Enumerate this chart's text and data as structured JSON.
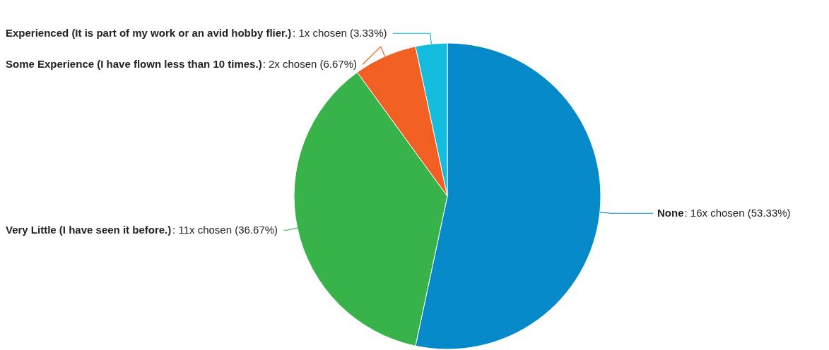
{
  "chart_data": {
    "type": "pie",
    "categories": [
      "None",
      "Very Little (I have seen it before.)",
      "Some Experience (I have flown less than 10 times.)",
      "Experienced (It is part of my work or an avid hobby flier.)"
    ],
    "values": [
      16,
      11,
      2,
      1
    ],
    "value_labels": [
      ": 16x chosen (53.33%)",
      ": 11x chosen (36.67%)",
      ": 2x chosen (6.67%)",
      ": 1x chosen (3.33%)"
    ],
    "colors": [
      "#0689c8",
      "#37b34a",
      "#f15f22",
      "#13bbdc"
    ]
  }
}
